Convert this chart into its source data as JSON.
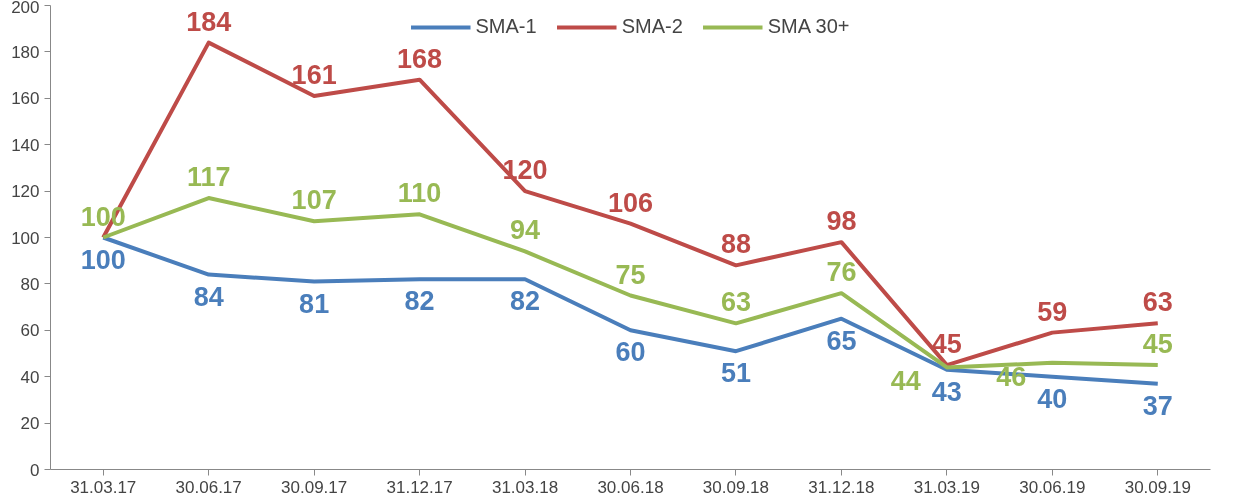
{
  "chart_data": {
    "type": "line",
    "categories": [
      "31.03.17",
      "30.06.17",
      "30.09.17",
      "31.12.17",
      "31.03.18",
      "30.06.18",
      "30.09.18",
      "31.12.18",
      "31.03.19",
      "30.06.19",
      "30.09.19"
    ],
    "series": [
      {
        "name": "SMA-1",
        "color": "#4a7ebb",
        "values": [
          100,
          84,
          81,
          82,
          82,
          60,
          51,
          65,
          43,
          40,
          37
        ],
        "value_labels": [
          "100",
          "84",
          "81",
          "82",
          "82",
          "60",
          "51",
          "65",
          "43",
          "40",
          "37"
        ]
      },
      {
        "name": "SMA-2",
        "color": "#be4b48",
        "values": [
          100,
          184,
          161,
          168,
          120,
          106,
          88,
          98,
          45,
          59,
          63
        ],
        "value_labels": [
          null,
          "184",
          "161",
          "168",
          "120",
          "106",
          "88",
          "98",
          "45",
          "59",
          "63"
        ]
      },
      {
        "name": "SMA 30+",
        "color": "#98b954",
        "values": [
          100,
          117,
          107,
          110,
          94,
          75,
          63,
          76,
          44,
          46,
          45
        ],
        "value_labels": [
          "100",
          "117",
          "107",
          "110",
          "94",
          "75",
          "63",
          "76",
          "44",
          "46",
          "45"
        ]
      }
    ],
    "ylim": [
      0,
      200
    ],
    "yticks": [
      0,
      20,
      40,
      60,
      80,
      100,
      120,
      140,
      160,
      180,
      200
    ],
    "grid": false,
    "legend": "top",
    "marker": "none",
    "line_style": "solid"
  }
}
